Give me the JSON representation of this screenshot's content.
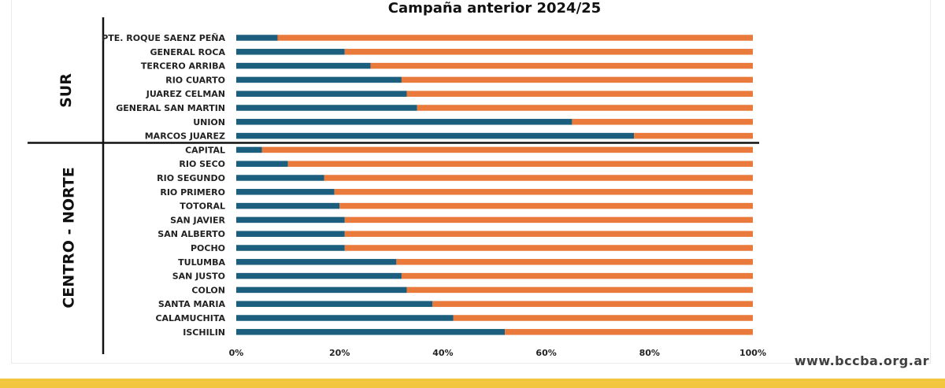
{
  "website": "www.bccba.org.ar",
  "colors": {
    "series_1": "#1b5e7e",
    "series_2": "#e97a3c",
    "brand_band": "#f3c63f"
  },
  "chart_data": {
    "type": "bar",
    "orientation": "horizontal",
    "stacked": "percent",
    "title": "Campaña anterior 2024/25",
    "xlim": [
      0,
      100
    ],
    "x_ticks": [
      "0%",
      "20%",
      "40%",
      "60%",
      "80%",
      "100%"
    ],
    "groups": [
      {
        "label": "SUR",
        "categories": [
          "PTE. ROQUE SAENZ PEÑA",
          "GENERAL ROCA",
          "TERCERO ARRIBA",
          "RIO CUARTO",
          "JUAREZ CELMAN",
          "GENERAL SAN MARTIN",
          "UNION",
          "MARCOS JUAREZ"
        ]
      },
      {
        "label": "CENTRO - NORTE",
        "categories": [
          "CAPITAL",
          "RIO SECO",
          "RIO SEGUNDO",
          "RIO PRIMERO",
          "TOTORAL",
          "SAN JAVIER",
          "SAN ALBERTO",
          "POCHO",
          "TULUMBA",
          "SAN JUSTO",
          "COLON",
          "SANTA MARIA",
          "CALAMUCHITA",
          "ISCHILIN"
        ]
      }
    ],
    "categories": [
      "PTE. ROQUE SAENZ PEÑA",
      "GENERAL ROCA",
      "TERCERO ARRIBA",
      "RIO CUARTO",
      "JUAREZ CELMAN",
      "GENERAL SAN MARTIN",
      "UNION",
      "MARCOS JUAREZ",
      "CAPITAL",
      "RIO SECO",
      "RIO SEGUNDO",
      "RIO PRIMERO",
      "TOTORAL",
      "SAN JAVIER",
      "SAN ALBERTO",
      "POCHO",
      "TULUMBA",
      "SAN JUSTO",
      "COLON",
      "SANTA MARIA",
      "CALAMUCHITA",
      "ISCHILIN"
    ],
    "series": [
      {
        "color": "#1b5e7e",
        "values": [
          8,
          21,
          26,
          32,
          33,
          35,
          65,
          77,
          5,
          10,
          17,
          19,
          20,
          21,
          21,
          21,
          31,
          32,
          33,
          38,
          42,
          52
        ]
      },
      {
        "color": "#e97a3c",
        "values": [
          92,
          79,
          74,
          68,
          67,
          65,
          35,
          23,
          95,
          90,
          83,
          81,
          80,
          79,
          79,
          79,
          69,
          68,
          67,
          62,
          58,
          48
        ]
      }
    ],
    "grid": false,
    "legend": "none"
  }
}
